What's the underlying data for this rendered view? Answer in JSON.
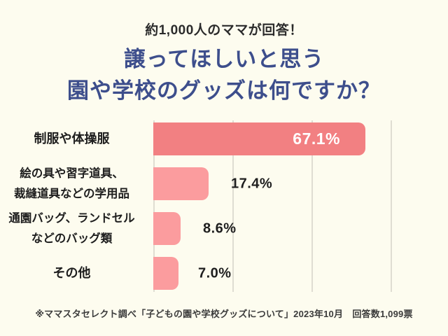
{
  "header": {
    "subtitle": "約1,000人のママが回答！",
    "title_line1": "譲ってほしいと思う",
    "title_line2": "園や学校のグッズは何ですか？"
  },
  "footer": {
    "source_note": "※ママスタセレクト調べ「子どもの園や学校グッズについて」2023年10月　回答数1,099票"
  },
  "colors": {
    "background": "#FDFCEF",
    "title": "#3D4E8C",
    "bar_highlight": "#F28082",
    "bar_default": "#FB9C9E",
    "gridline": "#DFDDD2",
    "value_inside_text": "#FFFFFF",
    "value_outside_text": "#1E1E1E"
  },
  "chart_data": {
    "type": "bar",
    "orientation": "horizontal",
    "title": "譲ってほしいと思う園や学校のグッズは何ですか？",
    "subtitle": "約1,000人のママが回答！",
    "categories": [
      "制服や体操服",
      "絵の具や習字道具、裁縫道具などの学用品",
      "通園バッグ、ランドセルなどのバッグ類",
      "その他"
    ],
    "category_lines": [
      [
        "制服や体操服"
      ],
      [
        "絵の具や習字道具、",
        "裁縫道具などの学用品"
      ],
      [
        "通園バッグ、ランドセル",
        "などのバッグ類"
      ],
      [
        "その他"
      ]
    ],
    "values": [
      67.1,
      17.4,
      8.6,
      7.0
    ],
    "value_labels": [
      "67.1%",
      "17.4%",
      "8.6%",
      "7.0%"
    ],
    "unit": "%",
    "xlim": [
      0,
      80
    ],
    "gridlines_percent": [
      0,
      25,
      50,
      75
    ],
    "highlight_index": 0,
    "grid": true,
    "legend": false,
    "source": "※ママスタセレクト調べ「子どもの園や学校グッズについて」2023年10月　回答数1,099票"
  }
}
